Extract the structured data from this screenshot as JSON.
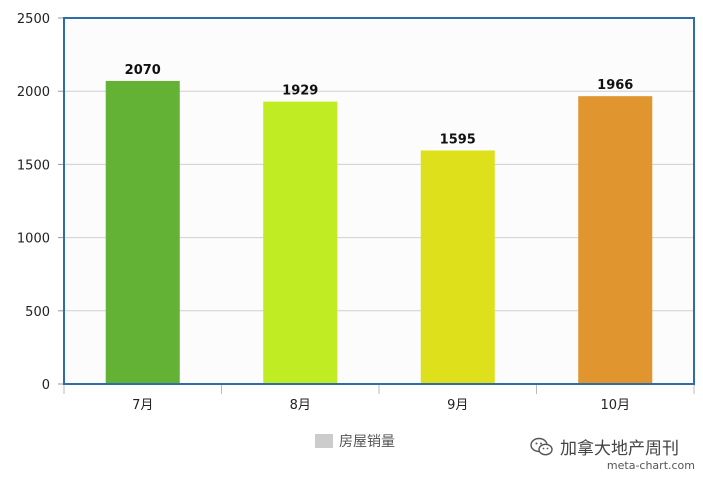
{
  "chart_data": {
    "type": "bar",
    "categories": [
      "7月",
      "8月",
      "9月",
      "10月"
    ],
    "values": [
      2070,
      1929,
      1595,
      1966
    ],
    "bar_colors": [
      "#63b235",
      "#bfec23",
      "#dde01b",
      "#e0952f"
    ],
    "data_labels": [
      "2070",
      "1929",
      "1595",
      "1966"
    ],
    "y_ticks": [
      "0",
      "500",
      "1000",
      "1500",
      "2000",
      "2500"
    ],
    "ylim": [
      0,
      2500
    ],
    "grid": true,
    "legend": {
      "label": "房屋销量",
      "color": "#cccccc",
      "placement": "bottom-center"
    },
    "frame_color": "#2e6ea8",
    "gridline_color": "#d0d0d0"
  },
  "watermark": {
    "icon": "wechat-icon",
    "text": "加拿大地产周刊"
  },
  "credit": "meta-chart.com"
}
